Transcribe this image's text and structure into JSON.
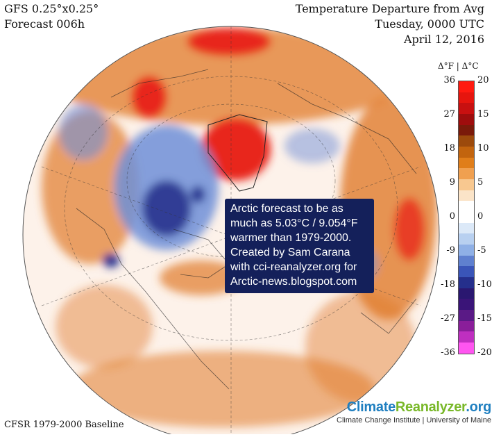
{
  "header": {
    "model": "GFS 0.25°x0.25°",
    "forecast": "Forecast 006h",
    "title": "Temperature Departure from Avg",
    "day_time": "Tuesday, 0000 UTC",
    "date": "April 12, 2016"
  },
  "colorbar": {
    "heading": "Δ°F | Δ°C",
    "fahrenheit_ticks": [
      "36",
      "27",
      "18",
      "9",
      "0",
      "-9",
      "-18",
      "-27",
      "-36"
    ],
    "celsius_ticks": [
      "20",
      "15",
      "10",
      "5",
      "0",
      "-5",
      "-10",
      "-15",
      "-20"
    ],
    "colors": [
      "#ff1a10",
      "#e6150e",
      "#c81010",
      "#9e0d0d",
      "#7a1a0a",
      "#9c4a0c",
      "#c2640e",
      "#e07e1a",
      "#f0a050",
      "#f8c890",
      "#fbe4c8",
      "#ffffff",
      "#ffffff",
      "#dce9f8",
      "#b8d0f0",
      "#8fb0e6",
      "#5f80cf",
      "#3a55b8",
      "#252f8c",
      "#2a1770",
      "#3a1478",
      "#5a1a86",
      "#8a1e9a",
      "#bf2fc0",
      "#ff55f0"
    ]
  },
  "annotation": {
    "lines": [
      "Arctic forecast to be as",
      "much as 5.03°C / 9.054°F",
      "warmer than 1979-2000.",
      "Created by Sam Carana",
      "with cci-reanalyzer.org for",
      "Arctic-news.blogspot.com"
    ]
  },
  "footer": {
    "baseline": "CFSR 1979-2000 Baseline",
    "brand_part1": "Climate",
    "brand_part2": "Reanalyzer",
    "brand_part3": ".org",
    "brand_sub": "Climate Change Institute | University of Maine",
    "brand_color1": "#1f7fc0",
    "brand_color2": "#79b829",
    "brand_color3": "#1f7fc0"
  },
  "map": {
    "ocean_color": "#fdf2ea",
    "warm_color": "#e07a2a",
    "hot_color": "#e8281a",
    "cool_color": "#6f8fd8",
    "cold_color": "#28338e"
  }
}
